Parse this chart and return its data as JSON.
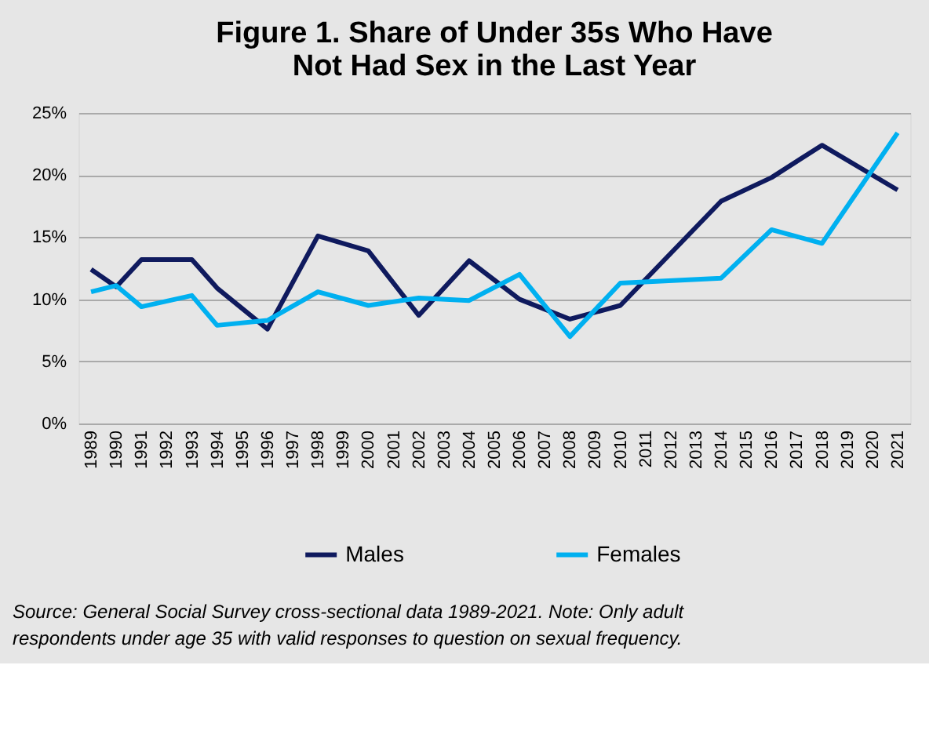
{
  "chart_data": {
    "type": "line",
    "title": "Figure 1. Share of Under 35s Who Have Not Had Sex in the Last Year",
    "xlim": [
      1988.5,
      2021.5
    ],
    "xticks": [
      1989,
      1990,
      1991,
      1992,
      1993,
      1994,
      1995,
      1996,
      1997,
      1998,
      1999,
      2000,
      2001,
      2002,
      2003,
      2004,
      2005,
      2006,
      2007,
      2008,
      2009,
      2010,
      2011,
      2012,
      2013,
      2014,
      2015,
      2016,
      2017,
      2018,
      2019,
      2020,
      2021
    ],
    "ylim": [
      0,
      25
    ],
    "yticks": [
      {
        "value": 0,
        "label": "0%"
      },
      {
        "value": 5,
        "label": "5%"
      },
      {
        "value": 10,
        "label": "10%"
      },
      {
        "value": 15,
        "label": "15%"
      },
      {
        "value": 20,
        "label": "20%"
      },
      {
        "value": 25,
        "label": "25%"
      }
    ],
    "grid": "y",
    "legend": "bottom",
    "line_style": "solid",
    "marker": "none",
    "series": [
      {
        "name": "Males",
        "color": "#0f1a5e",
        "x": [
          1989,
          1990,
          1991,
          1993,
          1994,
          1996,
          1998,
          2000,
          2002,
          2004,
          2006,
          2008,
          2010,
          2014,
          2016,
          2018,
          2021
        ],
        "values": [
          12.4,
          11.0,
          13.2,
          13.2,
          10.9,
          7.6,
          15.1,
          13.9,
          8.7,
          13.1,
          10.0,
          8.4,
          9.5,
          17.9,
          19.8,
          22.4,
          18.8
        ]
      },
      {
        "name": "Females",
        "color": "#00b0f0",
        "x": [
          1989,
          1990,
          1991,
          1993,
          1994,
          1996,
          1998,
          2000,
          2002,
          2004,
          2006,
          2008,
          2010,
          2014,
          2016,
          2018,
          2021
        ],
        "values": [
          10.6,
          11.1,
          9.4,
          10.3,
          7.9,
          8.3,
          10.6,
          9.5,
          10.1,
          9.9,
          12.0,
          7.0,
          11.3,
          11.7,
          15.6,
          14.5,
          23.4
        ]
      }
    ],
    "annotations": [
      "Source: General Social Survey cross-sectional data 1989-2021. Note: Only adult respondents under age 35 with valid responses to question on sexual frequency."
    ]
  }
}
